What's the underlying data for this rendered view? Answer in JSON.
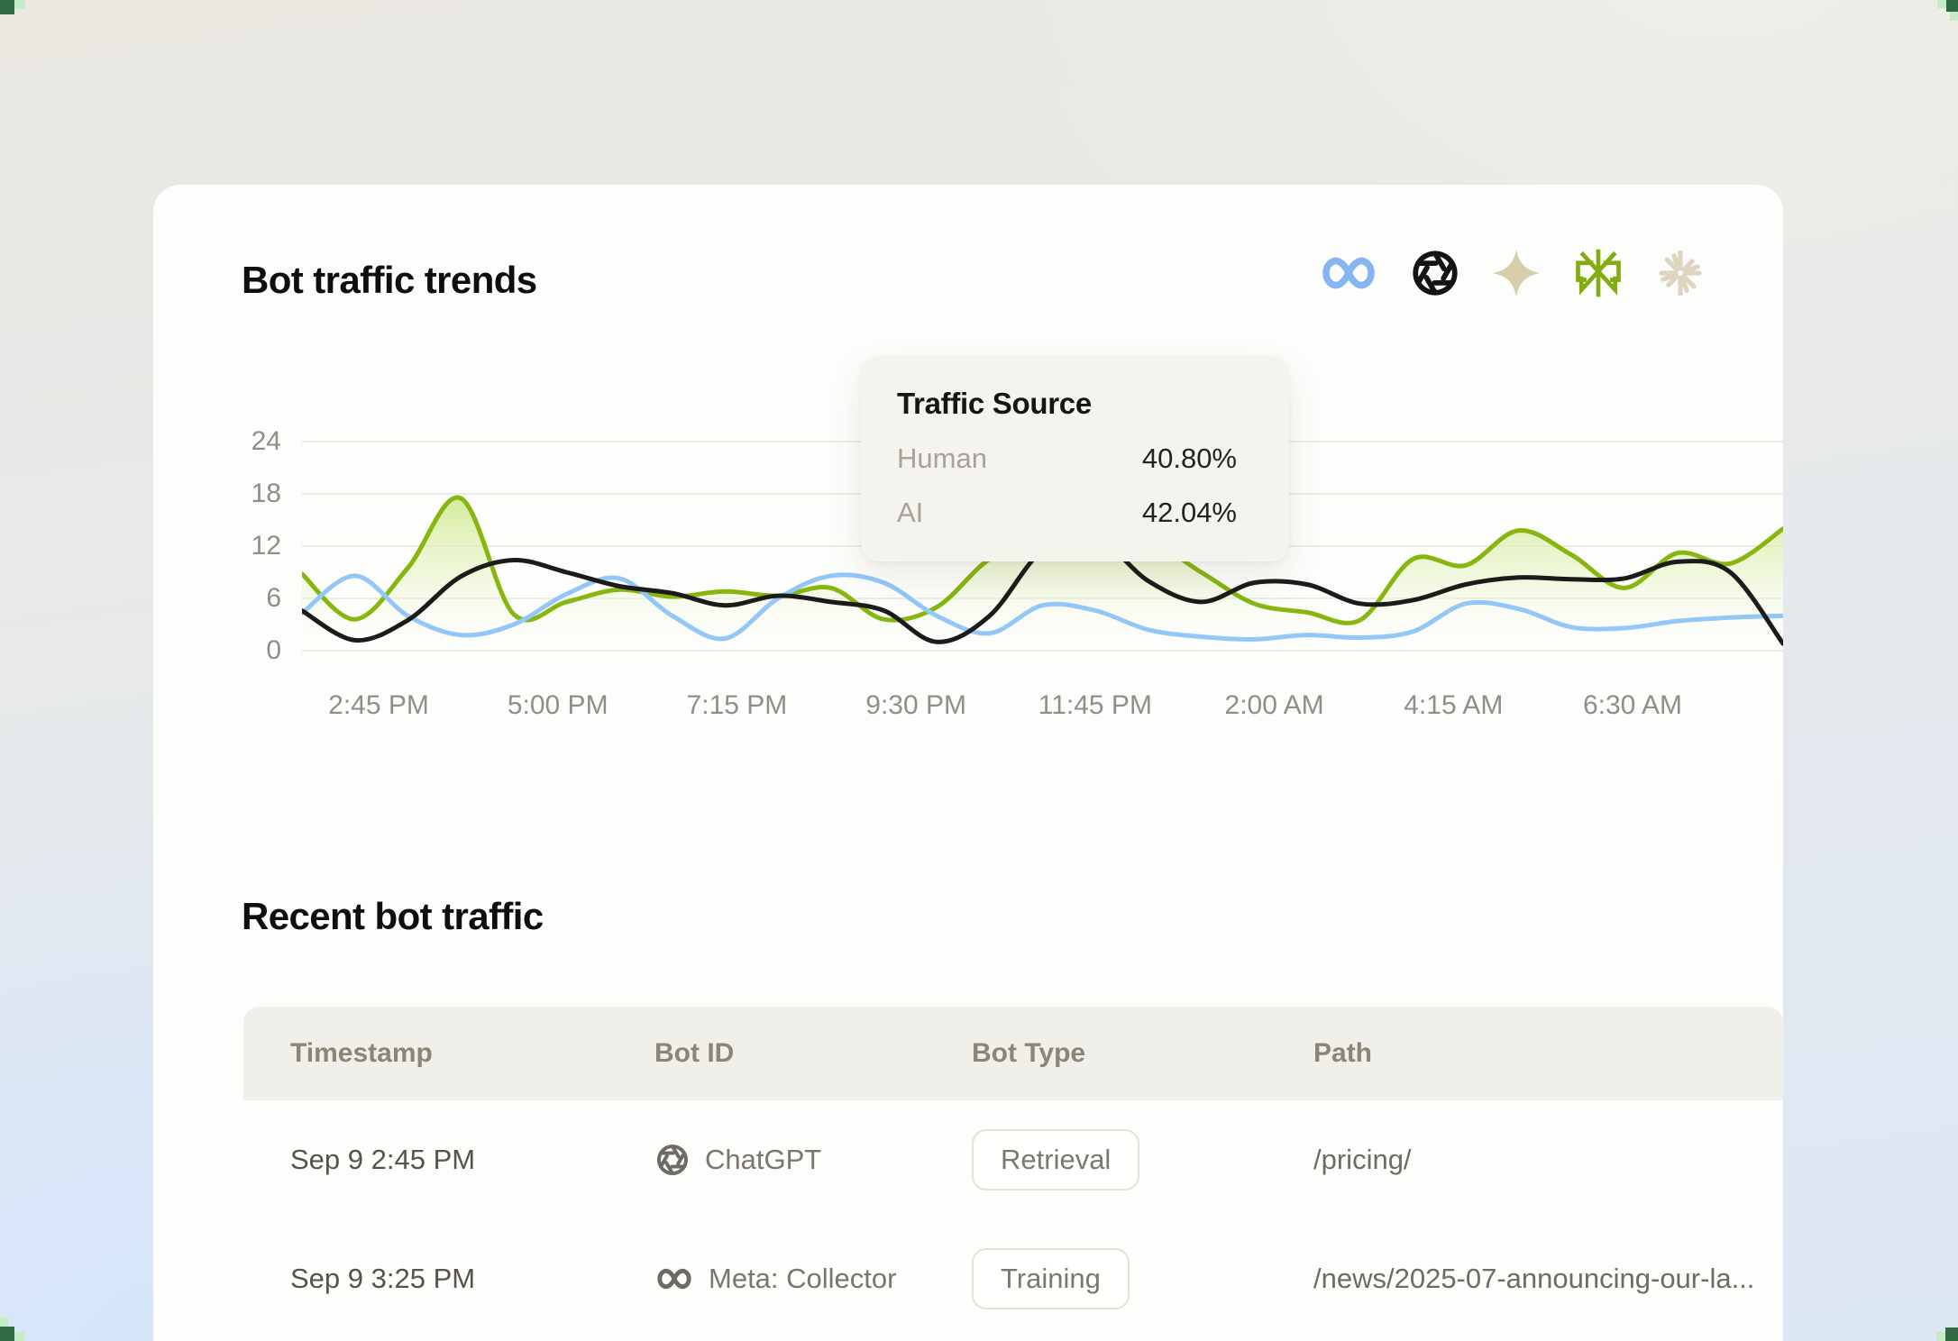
{
  "card": {
    "title": "Bot traffic trends",
    "header_icons": [
      "meta-icon",
      "openai-icon",
      "gemini-sparkle-icon",
      "perplexity-icon",
      "claude-starburst-icon"
    ]
  },
  "colors": {
    "accent_green": "#86b60f",
    "accent_blue": "#93c7f8",
    "accent_black": "#1b1b1a",
    "corner_dark_green": "#306b44",
    "corner_light_green": "#c3ecc7",
    "tooltip_bg": "#f5f3ed",
    "table_header_bg": "#f1efe9"
  },
  "chart_data": {
    "type": "line",
    "title": "Bot traffic trends",
    "xlabel": "",
    "ylabel": "",
    "ylim": [
      0,
      24
    ],
    "y_ticks": [
      24,
      18,
      12,
      6,
      0
    ],
    "x_ticks": [
      "2:45 PM",
      "5:00 PM",
      "7:15 PM",
      "9:30 PM",
      "11:45 PM",
      "2:00 AM",
      "4:15 AM",
      "6:30 AM"
    ],
    "grid": true,
    "legend_position": "none",
    "series": [
      {
        "id": "green-area-line",
        "color": "#86b60f",
        "area_fill": true,
        "values": [
          8.8,
          3.6,
          9.5,
          17.5,
          4.2,
          5.6,
          7.0,
          6.2,
          6.8,
          6.3,
          7.2,
          3.6,
          5.0,
          10.5,
          12.6,
          12.1,
          12.6,
          9.0,
          5.4,
          4.4,
          3.5,
          10.5,
          9.8,
          13.8,
          11.0,
          7.2,
          11.2,
          10.0,
          14.0
        ]
      },
      {
        "id": "blue-line",
        "color": "#93c7f8",
        "area_fill": false,
        "values": [
          4.3,
          8.6,
          4.0,
          1.8,
          3.0,
          6.5,
          8.3,
          4.0,
          1.4,
          6.0,
          8.6,
          7.8,
          4.0,
          2.0,
          5.2,
          4.6,
          2.4,
          1.6,
          1.3,
          1.8,
          1.5,
          2.2,
          5.4,
          4.8,
          2.7,
          2.6,
          3.4,
          3.8,
          4.0
        ]
      },
      {
        "id": "black-line",
        "color": "#1b1b1a",
        "area_fill": false,
        "values": [
          4.6,
          1.2,
          3.5,
          8.5,
          10.4,
          9.0,
          7.4,
          6.6,
          5.2,
          6.3,
          5.6,
          4.6,
          1.0,
          4.0,
          11.5,
          13.0,
          8.0,
          5.6,
          7.8,
          7.6,
          5.4,
          5.8,
          7.6,
          8.4,
          8.2,
          8.3,
          10.2,
          9.0,
          0.8
        ]
      }
    ]
  },
  "tooltip": {
    "title": "Traffic Source",
    "rows": [
      {
        "label": "Human",
        "value": "40.80%"
      },
      {
        "label": "AI",
        "value": "42.04%"
      }
    ]
  },
  "table": {
    "title": "Recent bot traffic",
    "columns": [
      "Timestamp",
      "Bot ID",
      "Bot Type",
      "Path"
    ],
    "rows": [
      {
        "timestamp": "Sep 9 2:45 PM",
        "bot_id": "ChatGPT",
        "bot_icon": "openai-icon",
        "bot_type": "Retrieval",
        "path": "/pricing/"
      },
      {
        "timestamp": "Sep 9 3:25 PM",
        "bot_id": "Meta: Collector",
        "bot_icon": "meta-icon",
        "bot_type": "Training",
        "path": "/news/2025-07-announcing-our-la..."
      }
    ]
  }
}
